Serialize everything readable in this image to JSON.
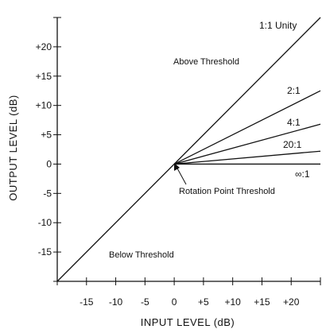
{
  "chart_data": {
    "type": "line",
    "xlabel": "INPUT LEVEL (dB)",
    "ylabel": "OUTPUT LEVEL (dB)",
    "xlim": [
      -20,
      25
    ],
    "ylim": [
      -20,
      25
    ],
    "x_ticks": [
      -20,
      -15,
      -10,
      -5,
      0,
      5,
      10,
      15,
      20,
      25
    ],
    "y_ticks": [
      -20,
      -15,
      -10,
      -5,
      0,
      5,
      10,
      15,
      20,
      25
    ],
    "x_tick_labels": [
      {
        "value": -15,
        "text": "-15"
      },
      {
        "value": -10,
        "text": "-10"
      },
      {
        "value": -5,
        "text": "-5"
      },
      {
        "value": 0,
        "text": "0"
      },
      {
        "value": 5,
        "text": "+5"
      },
      {
        "value": 10,
        "text": "+10"
      },
      {
        "value": 15,
        "text": "+15"
      },
      {
        "value": 20,
        "text": "+20"
      }
    ],
    "y_tick_labels": [
      {
        "value": 20,
        "text": "+20"
      },
      {
        "value": 15,
        "text": "+15"
      },
      {
        "value": 10,
        "text": "+10"
      },
      {
        "value": 5,
        "text": "+5"
      },
      {
        "value": 0,
        "text": "0"
      },
      {
        "value": -5,
        "text": "-5"
      },
      {
        "value": -10,
        "text": "-10"
      },
      {
        "value": -15,
        "text": "-15"
      }
    ],
    "series": [
      {
        "name": "1:1 Unity",
        "points": [
          [
            -20,
            -20
          ],
          [
            25,
            25
          ]
        ]
      },
      {
        "name": "2:1",
        "points": [
          [
            0,
            0
          ],
          [
            25,
            12.5
          ]
        ]
      },
      {
        "name": "4:1",
        "points": [
          [
            0,
            0
          ],
          [
            25,
            6.8
          ]
        ]
      },
      {
        "name": "20:1",
        "points": [
          [
            0,
            0
          ],
          [
            25,
            2.2
          ]
        ]
      },
      {
        "name": "∞:1",
        "points": [
          [
            0,
            0
          ],
          [
            25,
            0
          ]
        ]
      }
    ],
    "annotations": [
      "Above Threshold",
      "Rotation Point Threshold",
      "Below Threshold"
    ],
    "grid": false
  }
}
